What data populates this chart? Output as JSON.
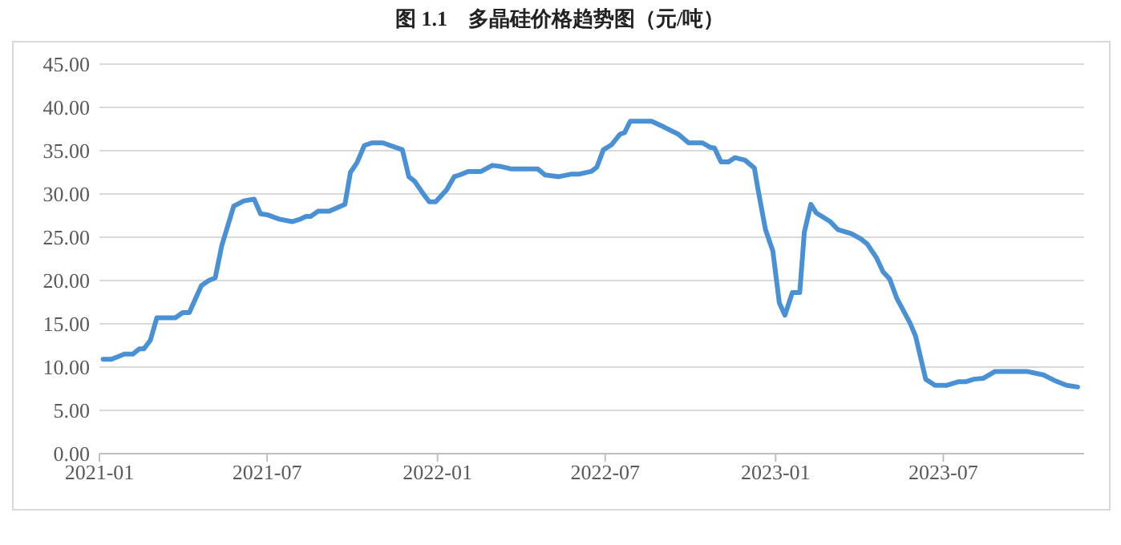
{
  "chart_data": {
    "type": "line",
    "title": "图 1.1　多晶硅价格趋势图（元/吨）",
    "x": [
      "2021-01-05",
      "2021-01-14",
      "2021-01-28",
      "2021-02-06",
      "2021-02-13",
      "2021-02-18",
      "2021-02-25",
      "2021-03-04",
      "2021-03-24",
      "2021-04-01",
      "2021-04-08",
      "2021-04-21",
      "2021-04-29",
      "2021-05-06",
      "2021-05-13",
      "2021-05-26",
      "2021-06-06",
      "2021-06-17",
      "2021-06-24",
      "2021-07-01",
      "2021-07-14",
      "2021-07-28",
      "2021-08-06",
      "2021-08-12",
      "2021-08-17",
      "2021-08-25",
      "2021-09-06",
      "2021-09-23",
      "2021-09-29",
      "2021-10-06",
      "2021-10-14",
      "2021-10-22",
      "2021-11-03",
      "2021-11-24",
      "2021-12-01",
      "2021-12-07",
      "2021-12-16",
      "2021-12-23",
      "2021-12-30",
      "2022-01-11",
      "2022-01-19",
      "2022-01-25",
      "2022-02-03",
      "2022-02-17",
      "2022-03-01",
      "2022-03-09",
      "2022-03-21",
      "2022-04-19",
      "2022-04-27",
      "2022-05-12",
      "2022-05-26",
      "2022-06-03",
      "2022-06-16",
      "2022-06-22",
      "2022-06-29",
      "2022-07-08",
      "2022-07-17",
      "2022-07-22",
      "2022-07-28",
      "2022-08-20",
      "2022-09-03",
      "2022-09-18",
      "2022-09-29",
      "2022-10-14",
      "2022-10-22",
      "2022-10-27",
      "2022-11-03",
      "2022-11-11",
      "2022-11-18",
      "2022-11-29",
      "2022-12-09",
      "2022-12-13",
      "2022-12-21",
      "2022-12-29",
      "2023-01-05",
      "2023-01-11",
      "2023-01-19",
      "2023-01-27",
      "2023-02-01",
      "2023-02-08",
      "2023-02-14",
      "2023-03-01",
      "2023-03-09",
      "2023-03-24",
      "2023-04-03",
      "2023-04-10",
      "2023-04-20",
      "2023-04-27",
      "2023-05-04",
      "2023-05-12",
      "2023-05-26",
      "2023-06-01",
      "2023-06-12",
      "2023-06-22",
      "2023-07-05",
      "2023-07-17",
      "2023-07-25",
      "2023-08-03",
      "2023-08-13",
      "2023-08-26",
      "2023-09-29",
      "2023-10-17",
      "2023-10-28",
      "2023-11-11",
      "2023-11-23"
    ],
    "series": [
      {
        "color": "#4a90d4",
        "values": [
          10.9,
          10.9,
          11.5,
          11.5,
          12.1,
          12.1,
          13.1,
          15.7,
          15.7,
          16.3,
          16.3,
          19.4,
          20.0,
          20.3,
          24.0,
          28.6,
          29.2,
          29.4,
          27.7,
          27.6,
          27.1,
          26.8,
          27.1,
          27.4,
          27.4,
          28.0,
          28.0,
          28.8,
          32.5,
          33.6,
          35.6,
          35.9,
          35.9,
          35.1,
          32.0,
          31.5,
          30.1,
          29.1,
          29.1,
          30.5,
          32.0,
          32.2,
          32.6,
          32.6,
          33.3,
          33.2,
          32.9,
          32.9,
          32.2,
          32.0,
          32.3,
          32.3,
          32.6,
          33.1,
          35.1,
          35.7,
          36.9,
          37.1,
          38.4,
          38.4,
          37.7,
          36.9,
          35.9,
          35.9,
          35.4,
          35.3,
          33.7,
          33.7,
          34.2,
          33.9,
          33.0,
          30.5,
          25.9,
          23.4,
          17.4,
          16.0,
          18.6,
          18.6,
          25.6,
          28.8,
          27.8,
          26.8,
          25.9,
          25.4,
          24.8,
          24.2,
          22.6,
          21.0,
          20.2,
          17.9,
          15.1,
          13.6,
          8.6,
          7.9,
          7.9,
          8.3,
          8.3,
          8.6,
          8.7,
          9.5,
          9.5,
          9.1,
          8.5,
          7.9,
          7.7
        ]
      }
    ],
    "xlim": [
      "2021-01-01",
      "2023-11-30"
    ],
    "xticks": [
      {
        "value": "2021-01-01",
        "label": "2021-01"
      },
      {
        "value": "2021-07-01",
        "label": "2021-07"
      },
      {
        "value": "2022-01-01",
        "label": "2022-01"
      },
      {
        "value": "2022-07-01",
        "label": "2022-07"
      },
      {
        "value": "2023-01-01",
        "label": "2023-01"
      },
      {
        "value": "2023-07-01",
        "label": "2023-07"
      }
    ],
    "ylim": [
      0,
      45
    ],
    "yticks": [
      {
        "value": 0,
        "label": "0.00"
      },
      {
        "value": 5,
        "label": "5.00"
      },
      {
        "value": 10,
        "label": "10.00"
      },
      {
        "value": 15,
        "label": "15.00"
      },
      {
        "value": 20,
        "label": "20.00"
      },
      {
        "value": 25,
        "label": "25.00"
      },
      {
        "value": 30,
        "label": "30.00"
      },
      {
        "value": 35,
        "label": "35.00"
      },
      {
        "value": 40,
        "label": "40.00"
      },
      {
        "value": 45,
        "label": "45.00"
      }
    ],
    "grid": "y",
    "marker": "none",
    "line_style": "solid"
  }
}
